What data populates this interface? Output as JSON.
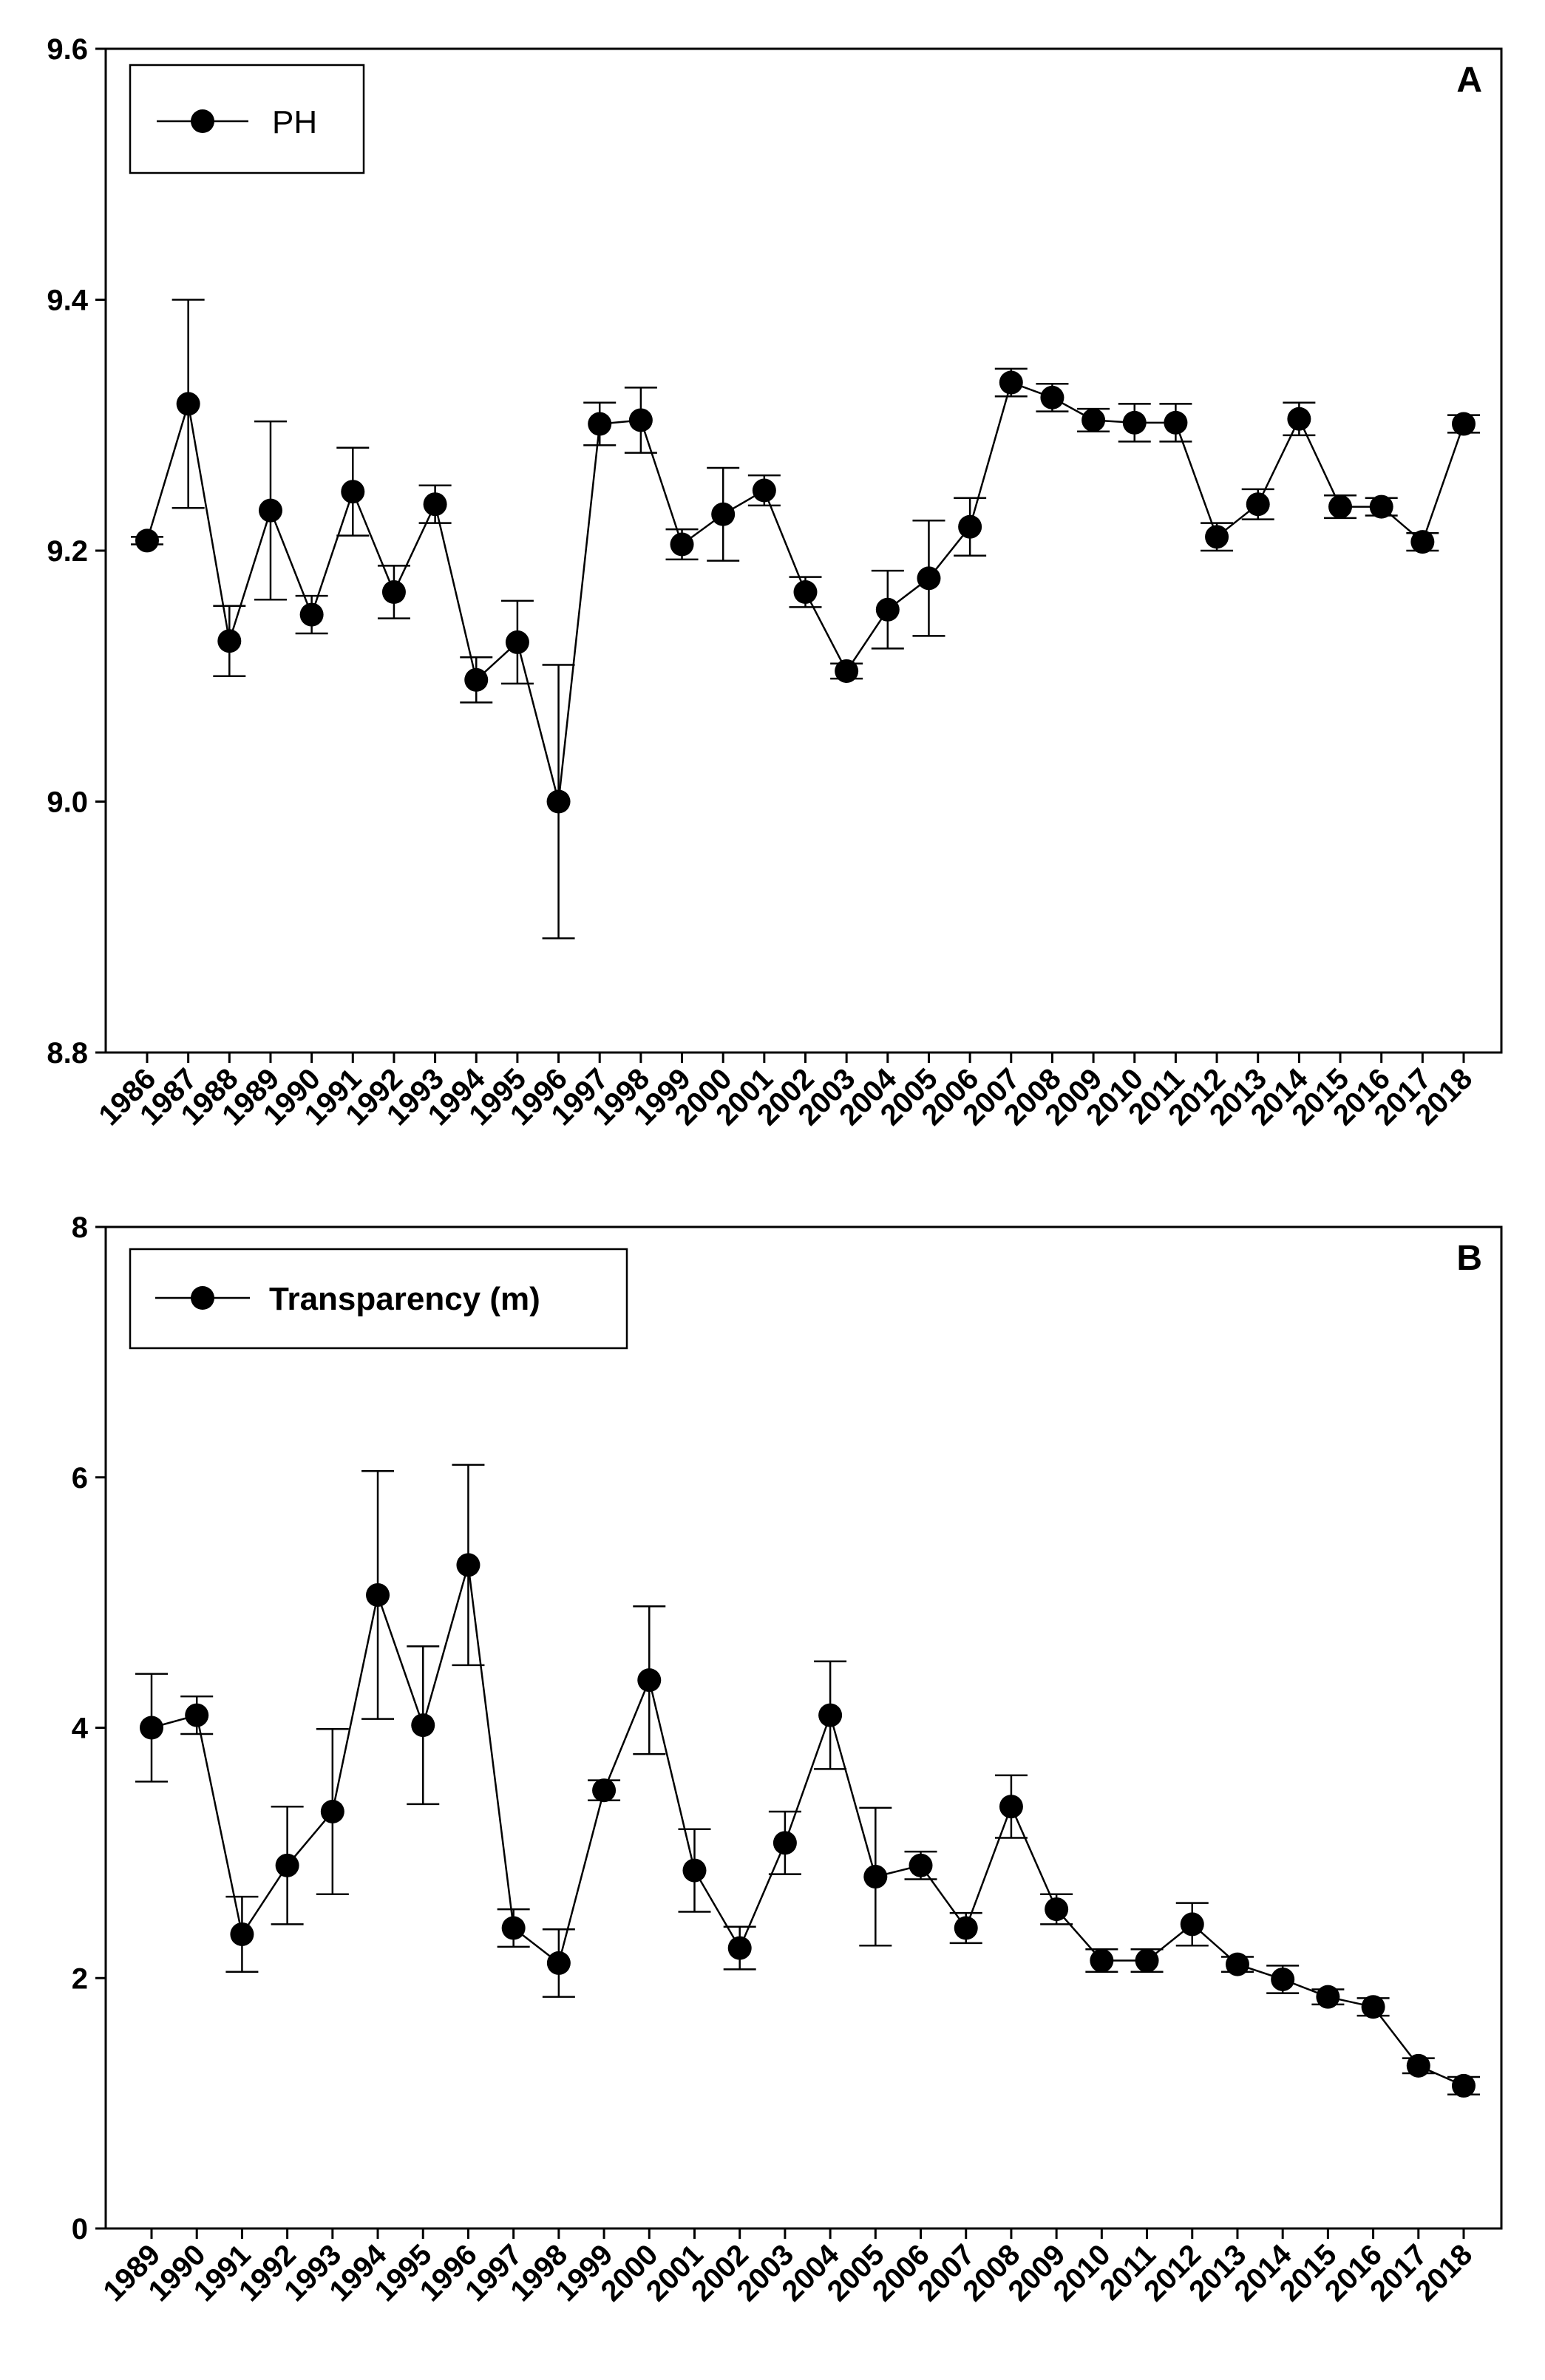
{
  "chart_data": [
    {
      "type": "line",
      "panel_label": "A",
      "title": "",
      "xlabel": "",
      "ylabel": "",
      "legend": {
        "label": "PH",
        "placement": "top-left"
      },
      "ylim": [
        8.8,
        9.6
      ],
      "yticks": [
        "8.8",
        "9.0",
        "9.2",
        "9.4",
        "9.6"
      ],
      "categories": [
        "1986",
        "1987",
        "1988",
        "1989",
        "1990",
        "1991",
        "1992",
        "1993",
        "1994",
        "1995",
        "1996",
        "1997",
        "1998",
        "1999",
        "2000",
        "2001",
        "2002",
        "2003",
        "2004",
        "2005",
        "2006",
        "2007",
        "2008",
        "2009",
        "2010",
        "2011",
        "2012",
        "2013",
        "2014",
        "2015",
        "2016",
        "2017",
        "2018"
      ],
      "series": [
        {
          "name": "PH",
          "values": [
            9.208,
            9.317,
            9.128,
            9.232,
            9.149,
            9.247,
            9.167,
            9.237,
            9.097,
            9.127,
            9.0,
            9.301,
            9.304,
            9.205,
            9.229,
            9.248,
            9.167,
            9.104,
            9.153,
            9.178,
            9.219,
            9.334,
            9.322,
            9.304,
            9.302,
            9.302,
            9.211,
            9.237,
            9.305,
            9.235,
            9.235,
            9.207,
            9.301
          ],
          "error": [
            0.003,
            0.083,
            0.028,
            0.071,
            0.015,
            0.035,
            0.021,
            0.015,
            0.018,
            0.033,
            0.109,
            0.017,
            0.026,
            0.012,
            0.037,
            0.012,
            0.012,
            0.006,
            0.031,
            0.046,
            0.023,
            0.011,
            0.011,
            0.009,
            0.015,
            0.015,
            0.011,
            0.012,
            0.013,
            0.009,
            0.007,
            0.007,
            0.007
          ]
        }
      ]
    },
    {
      "type": "line",
      "panel_label": "B",
      "title": "",
      "xlabel": "",
      "ylabel": "",
      "legend": {
        "label": "Transparency (m)",
        "placement": "top-left"
      },
      "ylim": [
        0,
        8
      ],
      "yticks": [
        "0",
        "2",
        "4",
        "6",
        "8"
      ],
      "categories": [
        "1989",
        "1990",
        "1991",
        "1992",
        "1993",
        "1994",
        "1995",
        "1996",
        "1997",
        "1998",
        "1999",
        "2000",
        "2001",
        "2002",
        "2003",
        "2004",
        "2005",
        "2006",
        "2007",
        "2008",
        "2009",
        "2010",
        "2011",
        "2012",
        "2013",
        "2014",
        "2015",
        "2016",
        "2017",
        "2018"
      ],
      "series": [
        {
          "name": "Transparency (m)",
          "values": [
            4.0,
            4.1,
            2.35,
            2.9,
            3.33,
            5.06,
            4.02,
            5.3,
            2.4,
            2.12,
            3.5,
            4.38,
            2.86,
            2.24,
            3.08,
            4.1,
            2.81,
            2.9,
            2.4,
            3.37,
            2.55,
            2.14,
            2.14,
            2.43,
            2.11,
            1.99,
            1.85,
            1.77,
            1.3,
            1.14
          ]
        }
      ],
      "error": [
        0.43,
        0.15,
        0.3,
        0.47,
        0.66,
        0.99,
        0.63,
        0.8,
        0.15,
        0.27,
        0.08,
        0.59,
        0.33,
        0.17,
        0.25,
        0.43,
        0.55,
        0.11,
        0.12,
        0.25,
        0.12,
        0.09,
        0.09,
        0.17,
        0.06,
        0.11,
        0.06,
        0.07,
        0.06,
        0.07
      ]
    }
  ]
}
